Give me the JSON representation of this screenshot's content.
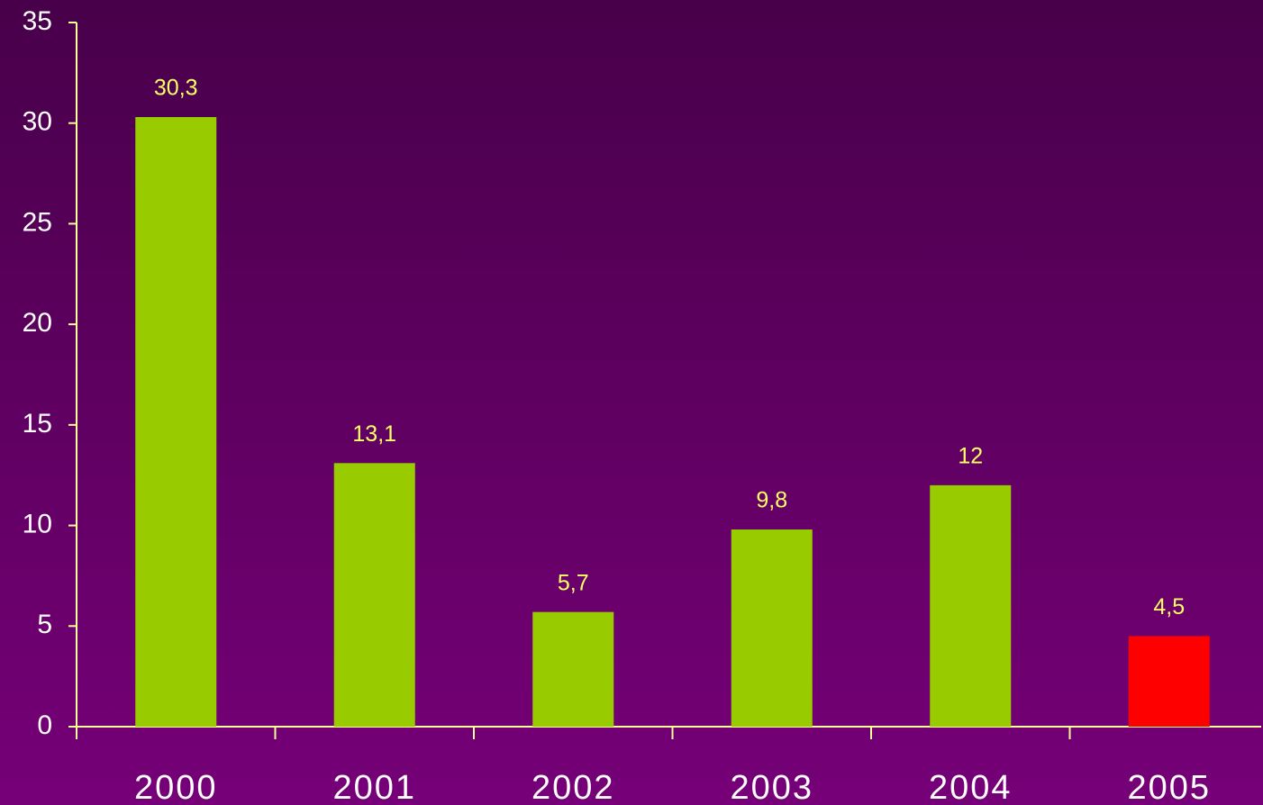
{
  "chart_data": {
    "type": "bar",
    "categories": [
      "2000",
      "2001",
      "2002",
      "2003",
      "2004",
      "2005"
    ],
    "values": [
      30.3,
      13.1,
      5.7,
      9.8,
      12,
      4.5
    ],
    "value_labels": [
      "30,3",
      "13,1",
      "5,7",
      "9,8",
      "12",
      "4,5"
    ],
    "colors": [
      "#99cc00",
      "#99cc00",
      "#99cc00",
      "#99cc00",
      "#99cc00",
      "#ff0000"
    ],
    "ylim": [
      0,
      35
    ],
    "yticks": [
      0,
      5,
      10,
      15,
      20,
      25,
      30,
      35
    ],
    "grid": false
  }
}
